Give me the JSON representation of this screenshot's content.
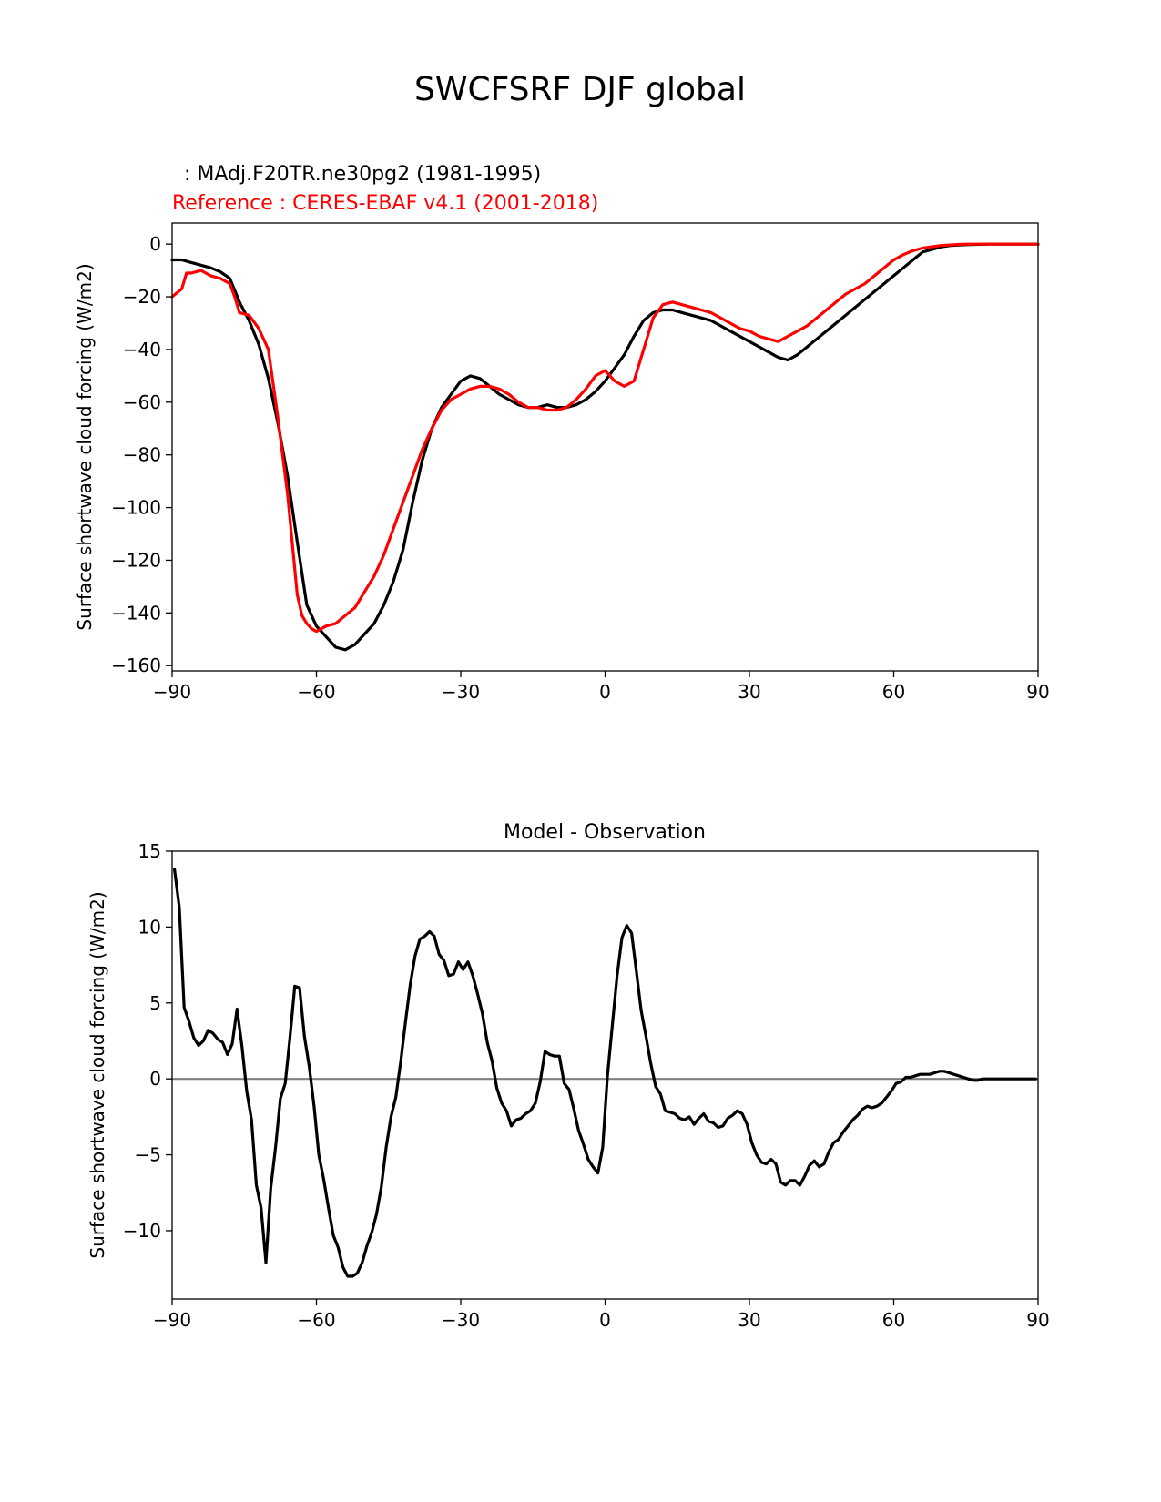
{
  "figure": {
    "title": "SWCFSRF DJF global"
  },
  "chart_data": [
    {
      "type": "line",
      "test_label": ": MAdj.F20TR.ne30pg2 (1981-1995)",
      "reference_label": "Reference : CERES-EBAF v4.1 (2001-2018)",
      "ylabel": "Surface shortwave cloud forcing (W/m2)",
      "xlabel": "",
      "xlim": [
        -90,
        90
      ],
      "ylim": [
        -162,
        8
      ],
      "xticks": [
        -90,
        -60,
        -30,
        0,
        30,
        60,
        90
      ],
      "xtick_labels": [
        "−90",
        "−60",
        "−30",
        "0",
        "30",
        "60",
        "90"
      ],
      "yticks": [
        0,
        -20,
        -40,
        -60,
        -80,
        -100,
        -120,
        -140,
        -160
      ],
      "ytick_labels": [
        "0",
        "−20",
        "−40",
        "−60",
        "−80",
        "−100",
        "−120",
        "−140",
        "−160"
      ],
      "grid": false,
      "series": [
        {
          "color": "#000000",
          "x": [
            -90,
            -88,
            -86,
            -84,
            -82,
            -80,
            -78,
            -76,
            -74,
            -72,
            -70,
            -68,
            -66,
            -64,
            -62,
            -60,
            -58,
            -56,
            -54,
            -52,
            -50,
            -48,
            -46,
            -44,
            -42,
            -40,
            -38,
            -36,
            -34,
            -32,
            -30,
            -28,
            -26,
            -24,
            -22,
            -20,
            -18,
            -16,
            -14,
            -12,
            -10,
            -8,
            -6,
            -4,
            -2,
            0,
            2,
            4,
            6,
            8,
            10,
            12,
            14,
            16,
            18,
            20,
            22,
            24,
            26,
            28,
            30,
            32,
            34,
            36,
            38,
            40,
            42,
            44,
            46,
            48,
            50,
            52,
            54,
            56,
            58,
            60,
            62,
            64,
            66,
            68,
            70,
            72,
            74,
            76,
            78,
            80,
            82,
            84,
            86,
            88,
            90
          ],
          "y": [
            -6,
            -6,
            -7,
            -8,
            -9,
            -10.5,
            -13,
            -22,
            -29,
            -38,
            -51,
            -68,
            -88,
            -113,
            -137,
            -145,
            -149,
            -153,
            -154,
            -152,
            -148,
            -144,
            -137,
            -128,
            -116,
            -98,
            -82,
            -70,
            -62,
            -57,
            -52,
            -50,
            -51,
            -54,
            -57,
            -59,
            -61,
            -62,
            -62,
            -61,
            -62,
            -62,
            -61,
            -59,
            -56,
            -52,
            -47,
            -42,
            -35,
            -29,
            -26,
            -25,
            -25,
            -26,
            -27,
            -28,
            -29,
            -31,
            -33,
            -35,
            -37,
            -39,
            -41,
            -43,
            -44,
            -42,
            -39,
            -36,
            -33,
            -30,
            -27,
            -24,
            -21,
            -18,
            -15,
            -12,
            -9,
            -6,
            -3,
            -2,
            -1,
            -0.5,
            -0.3,
            -0.2,
            -0.1,
            0,
            0,
            0,
            0,
            0,
            0
          ]
        },
        {
          "color": "#ff0000",
          "x": [
            -90,
            -88,
            -87,
            -86,
            -84,
            -82,
            -80,
            -78,
            -77,
            -76,
            -74,
            -72,
            -70,
            -68,
            -66,
            -64,
            -63,
            -62,
            -61,
            -60,
            -58,
            -56,
            -54,
            -52,
            -50,
            -48,
            -46,
            -44,
            -42,
            -40,
            -38,
            -36,
            -34,
            -32,
            -30,
            -28,
            -26,
            -24,
            -22,
            -20,
            -18,
            -16,
            -14,
            -12,
            -10,
            -8,
            -6,
            -4,
            -2,
            0,
            1,
            2,
            4,
            6,
            8,
            10,
            12,
            14,
            16,
            18,
            20,
            22,
            24,
            26,
            28,
            30,
            32,
            34,
            36,
            38,
            40,
            42,
            44,
            46,
            48,
            50,
            52,
            54,
            56,
            58,
            60,
            62,
            64,
            66,
            68,
            70,
            72,
            74,
            76,
            78,
            80,
            82,
            84,
            86,
            88,
            90
          ],
          "y": [
            -20,
            -17,
            -11,
            -11,
            -10,
            -12,
            -13,
            -15,
            -20,
            -26,
            -27,
            -32,
            -40,
            -66,
            -95,
            -133,
            -141,
            -144,
            -146,
            -147,
            -145,
            -144,
            -141,
            -138,
            -132,
            -126,
            -118,
            -108,
            -98,
            -88,
            -78,
            -70,
            -63,
            -59,
            -57,
            -55,
            -54,
            -54,
            -55,
            -57,
            -60,
            -62,
            -62,
            -63,
            -63,
            -62,
            -59,
            -55,
            -50,
            -48,
            -50,
            -52,
            -54,
            -52,
            -40,
            -28,
            -23,
            -22,
            -23,
            -24,
            -25,
            -26,
            -28,
            -30,
            -32,
            -33,
            -35,
            -36,
            -37,
            -35,
            -33,
            -31,
            -28,
            -25,
            -22,
            -19,
            -17,
            -15,
            -12,
            -9,
            -6,
            -4,
            -2.5,
            -1.5,
            -1,
            -0.5,
            -0.3,
            -0.1,
            0,
            0,
            0,
            0,
            0,
            0,
            0,
            0
          ]
        }
      ]
    },
    {
      "type": "line",
      "title": "Model - Observation",
      "ylabel": "Surface shortwave cloud forcing (W/m2)",
      "xlabel": "",
      "xlim": [
        -90,
        90
      ],
      "ylim": [
        -14.5,
        15
      ],
      "xticks": [
        -90,
        -60,
        -30,
        0,
        30,
        60,
        90
      ],
      "xtick_labels": [
        "−90",
        "−60",
        "−30",
        "0",
        "30",
        "60",
        "90"
      ],
      "yticks": [
        15,
        10,
        5,
        0,
        -5,
        -10
      ],
      "ytick_labels": [
        "15",
        "10",
        "5",
        "0",
        "−5",
        "−10"
      ],
      "grid": false,
      "zero_line_color": "#808080",
      "series": [
        {
          "color": "#000000",
          "x": [
            -89.5,
            -88.5,
            -87.5,
            -86.5,
            -85.5,
            -84.5,
            -83.5,
            -82.5,
            -81.5,
            -80.5,
            -79.5,
            -78.5,
            -77.5,
            -76.5,
            -75.5,
            -74.5,
            -73.5,
            -72.5,
            -71.5,
            -70.5,
            -69.5,
            -68.5,
            -67.5,
            -66.5,
            -65.5,
            -64.5,
            -63.5,
            -62.5,
            -61.5,
            -60.5,
            -59.5,
            -58.5,
            -57.5,
            -56.5,
            -55.5,
            -54.5,
            -53.5,
            -52.5,
            -51.5,
            -50.5,
            -49.5,
            -48.5,
            -47.5,
            -46.5,
            -45.5,
            -44.5,
            -43.5,
            -42.5,
            -41.5,
            -40.5,
            -39.5,
            -38.5,
            -37.5,
            -36.5,
            -35.5,
            -34.5,
            -33.5,
            -32.5,
            -31.5,
            -30.5,
            -29.5,
            -28.5,
            -27.5,
            -26.5,
            -25.5,
            -24.5,
            -23.5,
            -22.5,
            -21.5,
            -20.5,
            -19.5,
            -18.5,
            -17.5,
            -16.5,
            -15.5,
            -14.5,
            -13.5,
            -12.5,
            -11.5,
            -10.5,
            -9.5,
            -8.5,
            -7.5,
            -6.5,
            -5.5,
            -4.5,
            -3.5,
            -2.5,
            -1.5,
            -0.5,
            0.5,
            1.5,
            2.5,
            3.5,
            4.5,
            5.5,
            6.5,
            7.5,
            8.5,
            9.5,
            10.5,
            11.5,
            12.5,
            13.5,
            14.5,
            15.5,
            16.5,
            17.5,
            18.5,
            19.5,
            20.5,
            21.5,
            22.5,
            23.5,
            24.5,
            25.5,
            26.5,
            27.5,
            28.5,
            29.5,
            30.5,
            31.5,
            32.5,
            33.5,
            34.5,
            35.5,
            36.5,
            37.5,
            38.5,
            39.5,
            40.5,
            41.5,
            42.5,
            43.5,
            44.5,
            45.5,
            46.5,
            47.5,
            48.5,
            49.5,
            50.5,
            51.5,
            52.5,
            53.5,
            54.5,
            55.5,
            56.5,
            57.5,
            58.5,
            59.5,
            60.5,
            61.5,
            62.5,
            63.5,
            64.5,
            65.5,
            66.5,
            67.5,
            68.5,
            69.5,
            70.5,
            71.5,
            72.5,
            73.5,
            74.5,
            75.5,
            76.5,
            77.5,
            78.5,
            79.5,
            80.5,
            81.5,
            82.5,
            83.5,
            84.5,
            85.5,
            86.5,
            87.5,
            88.5,
            89.5
          ],
          "y": [
            13.8,
            11.3,
            4.7,
            3.8,
            2.7,
            2.2,
            2.5,
            3.2,
            3.0,
            2.6,
            2.4,
            1.6,
            2.3,
            4.6,
            2.2,
            -0.8,
            -2.7,
            -7.0,
            -8.5,
            -12.1,
            -7.2,
            -4.5,
            -1.3,
            -0.3,
            2.7,
            6.1,
            6.0,
            2.8,
            0.8,
            -1.8,
            -5.0,
            -6.6,
            -8.5,
            -10.3,
            -11.1,
            -12.4,
            -13.0,
            -13.0,
            -12.8,
            -12.1,
            -11.0,
            -10.1,
            -8.9,
            -7.1,
            -4.5,
            -2.5,
            -1.2,
            1.1,
            3.7,
            6.2,
            8.1,
            9.2,
            9.4,
            9.7,
            9.4,
            8.2,
            7.8,
            6.8,
            6.9,
            7.7,
            7.2,
            7.7,
            6.8,
            5.6,
            4.3,
            2.4,
            1.2,
            -0.6,
            -1.6,
            -2.1,
            -3.1,
            -2.7,
            -2.6,
            -2.3,
            -2.1,
            -1.6,
            -0.2,
            1.8,
            1.6,
            1.5,
            1.5,
            -0.3,
            -0.7,
            -2.0,
            -3.4,
            -4.3,
            -5.3,
            -5.8,
            -6.2,
            -4.5,
            0.2,
            3.5,
            6.8,
            9.3,
            10.1,
            9.6,
            7.1,
            4.5,
            2.8,
            1.0,
            -0.5,
            -1.0,
            -2.1,
            -2.2,
            -2.3,
            -2.6,
            -2.7,
            -2.5,
            -3.0,
            -2.6,
            -2.3,
            -2.8,
            -2.9,
            -3.2,
            -3.1,
            -2.6,
            -2.4,
            -2.1,
            -2.3,
            -3.0,
            -4.2,
            -5.0,
            -5.5,
            -5.6,
            -5.3,
            -5.6,
            -6.8,
            -7.0,
            -6.7,
            -6.7,
            -7.0,
            -6.4,
            -5.7,
            -5.4,
            -5.8,
            -5.6,
            -4.8,
            -4.2,
            -4.0,
            -3.5,
            -3.1,
            -2.7,
            -2.4,
            -2.0,
            -1.8,
            -1.9,
            -1.8,
            -1.6,
            -1.2,
            -0.8,
            -0.3,
            -0.2,
            0.1,
            0.1,
            0.2,
            0.3,
            0.3,
            0.3,
            0.4,
            0.5,
            0.5,
            0.4,
            0.3,
            0.2,
            0.1,
            0.0,
            -0.1,
            -0.1,
            0.0,
            0.0,
            0.0,
            0.0,
            0.0,
            0.0,
            0.0,
            0.0,
            0.0,
            0.0,
            0.0,
            0.0
          ]
        }
      ]
    }
  ]
}
